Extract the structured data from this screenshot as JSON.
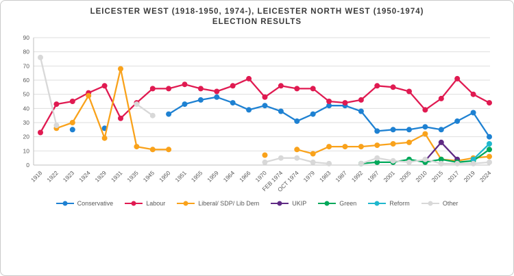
{
  "title": {
    "line1": "LEICESTER WEST (1918-1950, 1974-), LEICESTER NORTH WEST (1950-1974)",
    "line2": "ELECTION RESULTS"
  },
  "chart_data": {
    "type": "line",
    "title": "LEICESTER WEST (1918-1950, 1974-), LEICESTER NORTH WEST (1950-1974) ELECTION RESULTS",
    "categories": [
      "1918",
      "1922",
      "1923",
      "1924",
      "1929",
      "1931",
      "1935",
      "1945",
      "1950",
      "1951",
      "1955",
      "1959",
      "1964",
      "1966",
      "1970",
      "FEB 1974",
      "OCT 1974",
      "1979",
      "1983",
      "1987",
      "1992",
      "1997",
      "2001",
      "2005",
      "2010",
      "2015",
      "2017",
      "2019",
      "2024"
    ],
    "series": [
      {
        "name": "Conservative",
        "color": "#1e81d2",
        "values": [
          null,
          null,
          25,
          null,
          26,
          null,
          null,
          null,
          36,
          43,
          46,
          48,
          44,
          39,
          42,
          38,
          31,
          36,
          42,
          42,
          38,
          24,
          25,
          25,
          27,
          25,
          31,
          37,
          20
        ]
      },
      {
        "name": "Labour",
        "color": "#e01a51",
        "values": [
          23,
          43,
          45,
          51,
          56,
          33,
          44,
          54,
          54,
          57,
          54,
          52,
          56,
          61,
          48,
          56,
          54,
          54,
          45,
          44,
          46,
          56,
          55,
          52,
          39,
          47,
          61,
          50,
          44
        ]
      },
      {
        "name": "Liberal/ SDP/ Lib Dem",
        "color": "#f9a21b",
        "values": [
          null,
          26,
          30,
          49,
          19,
          68,
          13,
          11,
          11,
          null,
          null,
          null,
          null,
          null,
          7,
          null,
          11,
          8,
          13,
          13,
          13,
          14,
          15,
          16,
          22,
          4,
          3,
          5,
          6
        ]
      },
      {
        "name": "UKIP",
        "color": "#5f2a84",
        "values": [
          null,
          null,
          null,
          null,
          null,
          null,
          null,
          null,
          null,
          null,
          null,
          null,
          null,
          null,
          null,
          null,
          null,
          null,
          null,
          null,
          null,
          null,
          null,
          null,
          3,
          16,
          4,
          null,
          null
        ]
      },
      {
        "name": "Green",
        "color": "#00a85a",
        "values": [
          null,
          null,
          null,
          null,
          null,
          null,
          null,
          null,
          null,
          null,
          null,
          null,
          null,
          null,
          null,
          null,
          null,
          null,
          null,
          null,
          1,
          2,
          2,
          4,
          2,
          4,
          2,
          3,
          11
        ]
      },
      {
        "name": "Reform",
        "color": "#1fb7cd",
        "values": [
          null,
          null,
          null,
          null,
          null,
          null,
          null,
          null,
          null,
          null,
          null,
          null,
          null,
          null,
          null,
          null,
          null,
          null,
          null,
          null,
          null,
          null,
          null,
          null,
          null,
          null,
          null,
          4,
          15
        ]
      },
      {
        "name": "Other",
        "color": "#d8d8d8",
        "values": [
          76,
          28,
          null,
          null,
          null,
          null,
          43,
          35,
          null,
          null,
          null,
          null,
          null,
          null,
          2,
          5,
          5,
          2,
          1,
          null,
          1,
          5,
          3,
          2,
          4,
          1,
          1,
          1,
          2
        ]
      }
    ],
    "ylim": [
      0,
      90
    ],
    "y_ticks": [
      90,
      80,
      70,
      60,
      50,
      40,
      30,
      20,
      10,
      0
    ],
    "grid": true,
    "legend_position": "bottom",
    "xlabel": "",
    "ylabel": ""
  }
}
